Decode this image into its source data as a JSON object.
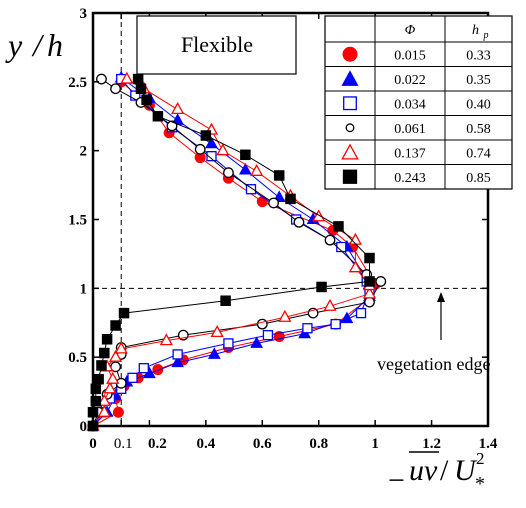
{
  "chart_data": {
    "type": "scatter",
    "title": "Flexible",
    "xlabel": "−uv/U*²",
    "ylabel": "y / h",
    "xlim": [
      0,
      1.4
    ],
    "ylim": [
      0,
      3
    ],
    "xticks": [
      {
        "value": 0,
        "label": "0"
      },
      {
        "value": 0.1,
        "label": "0.1"
      },
      {
        "value": 0.2,
        "label": "0.2"
      },
      {
        "value": 0.4,
        "label": "0.4"
      },
      {
        "value": 0.6,
        "label": "0.6"
      },
      {
        "value": 0.8,
        "label": "0.8"
      },
      {
        "value": 1.0,
        "label": "1"
      },
      {
        "value": 1.2,
        "label": "1.2"
      },
      {
        "value": 1.4,
        "label": "1.4"
      }
    ],
    "yticks": [
      {
        "value": 0,
        "label": "0"
      },
      {
        "value": 0.5,
        "label": "0.5"
      },
      {
        "value": 1,
        "label": "1"
      },
      {
        "value": 1.5,
        "label": "1.5"
      },
      {
        "value": 2,
        "label": "2"
      },
      {
        "value": 2.5,
        "label": "2.5"
      },
      {
        "value": 3,
        "label": "3"
      }
    ],
    "reference_lines": {
      "x": 0.1,
      "y": 1.0
    },
    "annotation": "vegetation edge",
    "legend": {
      "placement": "top-right",
      "headers": [
        "Φ",
        "h_p"
      ],
      "header_main": "Φ",
      "header_sub_base": "h",
      "header_sub": "p"
    },
    "series": [
      {
        "phi": "0.015",
        "hp": "0.33",
        "marker": "filled-circle",
        "color": "#ff0000",
        "linecolor": "#ff0000",
        "points": [
          [
            0.0,
            0.0
          ],
          [
            0.09,
            0.1
          ],
          [
            0.08,
            0.2
          ],
          [
            0.11,
            0.29
          ],
          [
            0.16,
            0.35
          ],
          [
            0.23,
            0.41
          ],
          [
            0.32,
            0.48
          ],
          [
            0.48,
            0.57
          ],
          [
            0.66,
            0.65
          ],
          [
            0.86,
            0.74
          ],
          [
            0.98,
            0.93
          ],
          [
            1.0,
            1.03
          ],
          [
            0.92,
            1.3
          ],
          [
            0.85,
            1.42
          ],
          [
            0.6,
            1.63
          ],
          [
            0.48,
            1.8
          ],
          [
            0.38,
            1.95
          ],
          [
            0.27,
            2.13
          ],
          [
            0.2,
            2.33
          ],
          [
            0.1,
            2.5
          ]
        ]
      },
      {
        "phi": "0.022",
        "hp": "0.35",
        "marker": "filled-triangle",
        "color": "#0000ff",
        "linecolor": "#0000ff",
        "points": [
          [
            0.0,
            0.0
          ],
          [
            0.05,
            0.1
          ],
          [
            0.08,
            0.22
          ],
          [
            0.12,
            0.32
          ],
          [
            0.2,
            0.38
          ],
          [
            0.3,
            0.46
          ],
          [
            0.43,
            0.52
          ],
          [
            0.58,
            0.6
          ],
          [
            0.75,
            0.67
          ],
          [
            0.9,
            0.78
          ],
          [
            0.98,
            0.94
          ],
          [
            0.98,
            1.03
          ],
          [
            0.9,
            1.3
          ],
          [
            0.78,
            1.5
          ],
          [
            0.66,
            1.66
          ],
          [
            0.54,
            1.86
          ],
          [
            0.42,
            2.05
          ],
          [
            0.3,
            2.22
          ],
          [
            0.2,
            2.38
          ],
          [
            0.1,
            2.53
          ]
        ]
      },
      {
        "phi": "0.034",
        "hp": "0.40",
        "marker": "open-square",
        "color": "#0000ff",
        "linecolor": "#0000ff",
        "points": [
          [
            0.0,
            0.0
          ],
          [
            0.03,
            0.1
          ],
          [
            0.06,
            0.2
          ],
          [
            0.1,
            0.27
          ],
          [
            0.14,
            0.35
          ],
          [
            0.18,
            0.42
          ],
          [
            0.3,
            0.52
          ],
          [
            0.48,
            0.6
          ],
          [
            0.62,
            0.66
          ],
          [
            0.76,
            0.71
          ],
          [
            0.86,
            0.74
          ],
          [
            0.95,
            0.82
          ],
          [
            0.98,
            0.99
          ],
          [
            0.97,
            1.05
          ],
          [
            0.88,
            1.3
          ],
          [
            0.72,
            1.5
          ],
          [
            0.56,
            1.72
          ],
          [
            0.42,
            1.96
          ],
          [
            0.28,
            2.17
          ],
          [
            0.15,
            2.4
          ],
          [
            0.1,
            2.52
          ]
        ]
      },
      {
        "phi": "0.061",
        "hp": "0.58",
        "marker": "open-circle",
        "color": "#000000",
        "linecolor": "#000000",
        "points": [
          [
            0.0,
            0.0
          ],
          [
            0.02,
            0.1
          ],
          [
            0.05,
            0.23
          ],
          [
            0.1,
            0.31
          ],
          [
            0.08,
            0.43
          ],
          [
            0.1,
            0.52
          ],
          [
            0.1,
            0.57
          ],
          [
            0.32,
            0.66
          ],
          [
            0.6,
            0.74
          ],
          [
            0.78,
            0.82
          ],
          [
            0.98,
            0.9
          ],
          [
            1.02,
            1.05
          ],
          [
            0.97,
            1.1
          ],
          [
            0.84,
            1.35
          ],
          [
            0.73,
            1.48
          ],
          [
            0.64,
            1.62
          ],
          [
            0.48,
            1.84
          ],
          [
            0.38,
            2.01
          ],
          [
            0.28,
            2.18
          ],
          [
            0.17,
            2.35
          ],
          [
            0.08,
            2.45
          ],
          [
            0.03,
            2.52
          ]
        ]
      },
      {
        "phi": "0.137",
        "hp": "0.74",
        "marker": "open-triangle",
        "color": "#ff0000",
        "linecolor": "#ff0000",
        "points": [
          [
            0.0,
            0.0
          ],
          [
            0.04,
            0.1
          ],
          [
            0.04,
            0.18
          ],
          [
            0.06,
            0.27
          ],
          [
            0.07,
            0.34
          ],
          [
            0.05,
            0.43
          ],
          [
            0.08,
            0.5
          ],
          [
            0.1,
            0.56
          ],
          [
            0.26,
            0.62
          ],
          [
            0.44,
            0.68
          ],
          [
            0.68,
            0.79
          ],
          [
            0.84,
            0.87
          ],
          [
            0.98,
            0.96
          ],
          [
            0.98,
            1.02
          ],
          [
            0.93,
            1.15
          ],
          [
            0.93,
            1.35
          ],
          [
            0.8,
            1.52
          ],
          [
            0.7,
            1.67
          ],
          [
            0.58,
            1.85
          ],
          [
            0.46,
            2.0
          ],
          [
            0.42,
            2.15
          ],
          [
            0.3,
            2.3
          ],
          [
            0.18,
            2.45
          ],
          [
            0.12,
            2.52
          ]
        ]
      },
      {
        "phi": "0.243",
        "hp": "0.85",
        "marker": "filled-square",
        "color": "#000000",
        "linecolor": "#000000",
        "points": [
          [
            0.0,
            0.0
          ],
          [
            0.0,
            0.1
          ],
          [
            0.01,
            0.18
          ],
          [
            0.01,
            0.27
          ],
          [
            0.02,
            0.34
          ],
          [
            0.03,
            0.44
          ],
          [
            0.04,
            0.53
          ],
          [
            0.05,
            0.63
          ],
          [
            0.08,
            0.73
          ],
          [
            0.11,
            0.82
          ],
          [
            0.47,
            0.91
          ],
          [
            0.81,
            1.01
          ],
          [
            0.98,
            1.05
          ],
          [
            0.98,
            1.22
          ],
          [
            0.87,
            1.45
          ],
          [
            0.7,
            1.65
          ],
          [
            0.66,
            1.82
          ],
          [
            0.54,
            1.97
          ],
          [
            0.4,
            2.11
          ],
          [
            0.23,
            2.25
          ],
          [
            0.19,
            2.37
          ],
          [
            0.17,
            2.45
          ],
          [
            0.16,
            2.52
          ]
        ]
      }
    ]
  }
}
